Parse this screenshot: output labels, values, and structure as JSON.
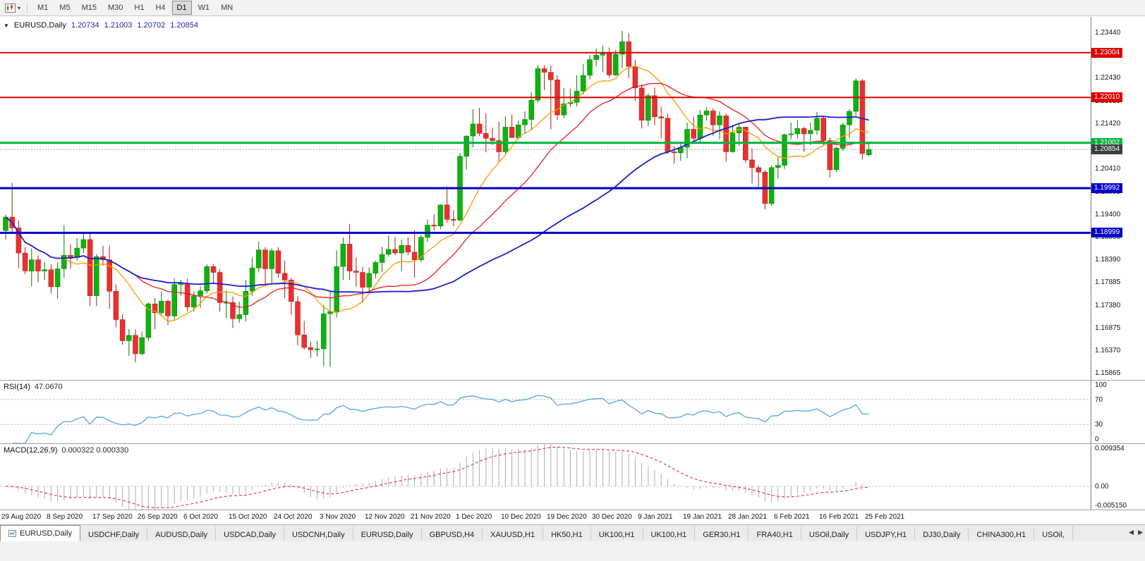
{
  "toolbar": {
    "timeframes": [
      "M1",
      "M5",
      "M15",
      "M30",
      "H1",
      "H4",
      "D1",
      "W1",
      "MN"
    ],
    "active_timeframe": "D1",
    "new_chart_icon": "candlestick-chart",
    "dropdown_caret": "▾"
  },
  "chart": {
    "header": {
      "caret": "▼",
      "symbol": "EURUSD,Daily",
      "open": "1.20734",
      "high": "1.21003",
      "low": "1.20702",
      "close": "1.20854"
    },
    "price_axis": {
      "top": 1.238,
      "bottom": 1.1573,
      "labels": [
        "1.23440",
        "1.22935",
        "1.22430",
        "1.21925",
        "1.21420",
        "1.20915",
        "1.20410",
        "1.19905",
        "1.19400",
        "1.18895",
        "1.18390",
        "1.17885",
        "1.17380",
        "1.16875",
        "1.16370",
        "1.15865"
      ]
    },
    "hlines": [
      {
        "value": 1.23004,
        "label": "1.23004",
        "color": "#dd0000",
        "width": 2
      },
      {
        "value": 1.2201,
        "label": "1.22010",
        "color": "#dd0000",
        "width": 2
      },
      {
        "value": 1.21002,
        "label": "1.21002",
        "color": "#00b43c",
        "width": 3
      },
      {
        "value": 1.19992,
        "label": "1.19992",
        "color": "#0000cc",
        "width": 3
      },
      {
        "value": 1.18999,
        "label": "1.18999",
        "color": "#0000cc",
        "width": 3
      }
    ],
    "bid": {
      "value": 1.20854,
      "label": "1.20854",
      "line_color": "#9c9c9c",
      "badge_color": "#3d3d3d"
    },
    "time_axis": [
      "29 Aug 2020",
      "8 Sep 2020",
      "17 Sep 2020",
      "26 Sep 2020",
      "6 Oct 2020",
      "15 Oct 2020",
      "24 Oct 2020",
      "3 Nov 2020",
      "12 Nov 2020",
      "21 Nov 2020",
      "1 Dec 2020",
      "10 Dec 2020",
      "19 Dec 2020",
      "30 Dec 2020",
      "9 Jan 2021",
      "19 Jan 2021",
      "28 Jan 2021",
      "6 Feb 2021",
      "16 Feb 2021",
      "25 Feb 2021"
    ],
    "colors": {
      "up": "#0db30d",
      "up_dark": "#067a06",
      "down": "#ea2f2f",
      "down_dark": "#a51f14"
    },
    "ma": [
      {
        "period": 10,
        "color": "#ff9900",
        "width": 1.3
      },
      {
        "period": 21,
        "color": "#e82020",
        "width": 1.3
      },
      {
        "period": 50,
        "color": "#1e1ecb",
        "width": 1.8
      }
    ],
    "candles": [
      [
        1.1905,
        1.194,
        1.1885,
        1.1935
      ],
      [
        1.1935,
        1.2011,
        1.19,
        1.1911
      ],
      [
        1.1911,
        1.1927,
        1.1822,
        1.1855
      ],
      [
        1.1855,
        1.1868,
        1.1808,
        1.1815
      ],
      [
        1.1815,
        1.1865,
        1.1781,
        1.184
      ],
      [
        1.184,
        1.185,
        1.179,
        1.1815
      ],
      [
        1.1815,
        1.1835,
        1.1795,
        1.1818
      ],
      [
        1.1818,
        1.183,
        1.1765,
        1.178
      ],
      [
        1.178,
        1.1834,
        1.1753,
        1.182
      ],
      [
        1.182,
        1.1917,
        1.18,
        1.185
      ],
      [
        1.185,
        1.1874,
        1.182,
        1.1845
      ],
      [
        1.1845,
        1.1888,
        1.1838,
        1.1866
      ],
      [
        1.1866,
        1.1901,
        1.1855,
        1.1885
      ],
      [
        1.1885,
        1.1899,
        1.1737,
        1.176
      ],
      [
        1.176,
        1.1852,
        1.1737,
        1.1847
      ],
      [
        1.1847,
        1.1871,
        1.1827,
        1.184
      ],
      [
        1.184,
        1.1872,
        1.1731,
        1.177
      ],
      [
        1.177,
        1.1785,
        1.169,
        1.1707
      ],
      [
        1.1707,
        1.1719,
        1.1651,
        1.166
      ],
      [
        1.166,
        1.1686,
        1.1626,
        1.1672
      ],
      [
        1.1672,
        1.1685,
        1.1612,
        1.1631
      ],
      [
        1.1631,
        1.168,
        1.1628,
        1.1667
      ],
      [
        1.1667,
        1.1745,
        1.166,
        1.1742
      ],
      [
        1.1742,
        1.1755,
        1.1685,
        1.1722
      ],
      [
        1.1722,
        1.1769,
        1.1717,
        1.1748
      ],
      [
        1.1748,
        1.1751,
        1.1695,
        1.1715
      ],
      [
        1.1715,
        1.1798,
        1.1705,
        1.1785
      ],
      [
        1.1785,
        1.1795,
        1.176,
        1.1788
      ],
      [
        1.1788,
        1.1798,
        1.1725,
        1.1735
      ],
      [
        1.1735,
        1.177,
        1.1725,
        1.176
      ],
      [
        1.176,
        1.1781,
        1.1733,
        1.1771
      ],
      [
        1.1771,
        1.183,
        1.1765,
        1.1825
      ],
      [
        1.1825,
        1.1831,
        1.1786,
        1.1812
      ],
      [
        1.1812,
        1.1819,
        1.1725,
        1.1745
      ],
      [
        1.1745,
        1.1772,
        1.171,
        1.1745
      ],
      [
        1.1745,
        1.1758,
        1.1688,
        1.1709
      ],
      [
        1.1709,
        1.1747,
        1.17,
        1.1718
      ],
      [
        1.1718,
        1.1795,
        1.1703,
        1.177
      ],
      [
        1.177,
        1.1845,
        1.176,
        1.1822
      ],
      [
        1.1822,
        1.188,
        1.1812,
        1.1862
      ],
      [
        1.1862,
        1.1868,
        1.1785,
        1.182
      ],
      [
        1.182,
        1.1865,
        1.1786,
        1.186
      ],
      [
        1.186,
        1.1868,
        1.18,
        1.181
      ],
      [
        1.181,
        1.1838,
        1.1755,
        1.1795
      ],
      [
        1.1795,
        1.18,
        1.1718,
        1.1747
      ],
      [
        1.1747,
        1.1759,
        1.165,
        1.1673
      ],
      [
        1.1673,
        1.1704,
        1.164,
        1.1645
      ],
      [
        1.1645,
        1.1658,
        1.1622,
        1.164
      ],
      [
        1.164,
        1.166,
        1.1625,
        1.1642
      ],
      [
        1.1642,
        1.174,
        1.1603,
        1.172
      ],
      [
        1.172,
        1.177,
        1.1602,
        1.1725
      ],
      [
        1.1725,
        1.1861,
        1.1712,
        1.1825
      ],
      [
        1.1825,
        1.189,
        1.1795,
        1.1875
      ],
      [
        1.1875,
        1.192,
        1.1795,
        1.1815
      ],
      [
        1.1815,
        1.1845,
        1.178,
        1.1812
      ],
      [
        1.1812,
        1.1824,
        1.1745,
        1.1779
      ],
      [
        1.1779,
        1.1823,
        1.177,
        1.181
      ],
      [
        1.181,
        1.1838,
        1.1799,
        1.1834
      ],
      [
        1.1834,
        1.1869,
        1.1814,
        1.1852
      ],
      [
        1.1852,
        1.1894,
        1.1847,
        1.1863
      ],
      [
        1.1863,
        1.1891,
        1.185,
        1.1855
      ],
      [
        1.1855,
        1.1885,
        1.1815,
        1.1872
      ],
      [
        1.1872,
        1.189,
        1.185,
        1.1857
      ],
      [
        1.1857,
        1.1906,
        1.18,
        1.184
      ],
      [
        1.184,
        1.1895,
        1.1835,
        1.189
      ],
      [
        1.189,
        1.193,
        1.188,
        1.1917
      ],
      [
        1.1917,
        1.1941,
        1.1905,
        1.1915
      ],
      [
        1.1915,
        1.1963,
        1.1908,
        1.1962
      ],
      [
        1.1962,
        1.2003,
        1.1923,
        1.193
      ],
      [
        1.193,
        1.195,
        1.1915,
        1.1928
      ],
      [
        1.1928,
        1.2077,
        1.1925,
        1.207
      ],
      [
        1.207,
        1.2117,
        1.204,
        1.2115
      ],
      [
        1.2115,
        1.2175,
        1.209,
        1.2142
      ],
      [
        1.2142,
        1.2178,
        1.2115,
        1.2121
      ],
      [
        1.2121,
        1.2166,
        1.2079,
        1.211
      ],
      [
        1.211,
        1.2134,
        1.2095,
        1.2105
      ],
      [
        1.2105,
        1.2147,
        1.2058,
        1.208
      ],
      [
        1.208,
        1.2159,
        1.2076,
        1.2135
      ],
      [
        1.2135,
        1.2163,
        1.211,
        1.2112
      ],
      [
        1.2112,
        1.215,
        1.2108,
        1.214
      ],
      [
        1.214,
        1.217,
        1.212,
        1.2152
      ],
      [
        1.2152,
        1.2212,
        1.213,
        1.2195
      ],
      [
        1.2195,
        1.2273,
        1.219,
        1.2265
      ],
      [
        1.2265,
        1.2273,
        1.2217,
        1.2257
      ],
      [
        1.2257,
        1.2272,
        1.213,
        1.224
      ],
      [
        1.224,
        1.225,
        1.2151,
        1.2162
      ],
      [
        1.2162,
        1.2222,
        1.2155,
        1.2187
      ],
      [
        1.2187,
        1.2221,
        1.218,
        1.219
      ],
      [
        1.219,
        1.225,
        1.2181,
        1.2215
      ],
      [
        1.2215,
        1.2275,
        1.2208,
        1.225
      ],
      [
        1.225,
        1.2295,
        1.224,
        1.2285
      ],
      [
        1.2285,
        1.231,
        1.227,
        1.2295
      ],
      [
        1.2295,
        1.2316,
        1.2258,
        1.23
      ],
      [
        1.23,
        1.2312,
        1.2245,
        1.2251
      ],
      [
        1.2251,
        1.2307,
        1.2248,
        1.2297
      ],
      [
        1.2297,
        1.2349,
        1.2266,
        1.2325
      ],
      [
        1.2325,
        1.2344,
        1.2244,
        1.227
      ],
      [
        1.227,
        1.2285,
        1.2193,
        1.2222
      ],
      [
        1.2222,
        1.223,
        1.2132,
        1.215
      ],
      [
        1.215,
        1.221,
        1.2137,
        1.2205
      ],
      [
        1.2205,
        1.2223,
        1.214,
        1.2158
      ],
      [
        1.2158,
        1.218,
        1.211,
        1.2155
      ],
      [
        1.2155,
        1.2165,
        1.2075,
        1.208
      ],
      [
        1.208,
        1.2092,
        1.2054,
        1.2078
      ],
      [
        1.2078,
        1.21,
        1.206,
        1.209
      ],
      [
        1.209,
        1.2145,
        1.2066,
        1.213
      ],
      [
        1.213,
        1.2158,
        1.2104,
        1.211
      ],
      [
        1.211,
        1.2173,
        1.2102,
        1.2162
      ],
      [
        1.2162,
        1.218,
        1.215,
        1.2171
      ],
      [
        1.2171,
        1.2177,
        1.2116,
        1.214
      ],
      [
        1.214,
        1.217,
        1.2108,
        1.216
      ],
      [
        1.216,
        1.2165,
        1.2058,
        1.208
      ],
      [
        1.208,
        1.214,
        1.2078,
        1.2122
      ],
      [
        1.2122,
        1.2142,
        1.2093,
        1.2135
      ],
      [
        1.2135,
        1.2136,
        1.2056,
        1.2062
      ],
      [
        1.2062,
        1.2087,
        1.201,
        1.2045
      ],
      [
        1.2045,
        1.205,
        1.2002,
        1.2035
      ],
      [
        1.2035,
        1.204,
        1.1952,
        1.1965
      ],
      [
        1.1965,
        1.205,
        1.196,
        1.2045
      ],
      [
        1.2045,
        1.207,
        1.202,
        1.205
      ],
      [
        1.205,
        1.212,
        1.2042,
        1.2118
      ],
      [
        1.2118,
        1.2145,
        1.2108,
        1.212
      ],
      [
        1.212,
        1.215,
        1.211,
        1.2132
      ],
      [
        1.2132,
        1.2136,
        1.208,
        1.212
      ],
      [
        1.212,
        1.2145,
        1.2095,
        1.2128
      ],
      [
        1.2128,
        1.2169,
        1.2118,
        1.2155
      ],
      [
        1.2155,
        1.216,
        1.2095,
        1.2105
      ],
      [
        1.2105,
        1.2112,
        1.2023,
        1.204
      ],
      [
        1.204,
        1.2092,
        1.2035,
        1.2088
      ],
      [
        1.2088,
        1.2145,
        1.2082,
        1.214
      ],
      [
        1.214,
        1.2175,
        1.211,
        1.217
      ],
      [
        1.217,
        1.2243,
        1.216,
        1.2238
      ],
      [
        1.2238,
        1.2242,
        1.2063,
        1.2076
      ],
      [
        1.20734,
        1.21003,
        1.20702,
        1.20854
      ]
    ]
  },
  "rsi": {
    "name": "RSI(14)",
    "value": "47.0670",
    "period": 14,
    "axis": [
      "100",
      "70",
      "30",
      "0"
    ],
    "levels": [
      70,
      30
    ],
    "color": "#56a5da",
    "level_color": "#c9c9c9"
  },
  "macd": {
    "name": "MACD(12,26,9)",
    "values": "0.000322 0.000330",
    "fast": 12,
    "slow": 26,
    "signal": 9,
    "axis_top": "0.009354",
    "axis_zero": "0.00",
    "axis_bottom": "-0.005150",
    "scale_top": 0.009354,
    "scale_bottom": -0.00515,
    "hist_color": "#adadad",
    "signal_color": "#e02020",
    "zero_color": "#cccccc"
  },
  "tabs": {
    "items": [
      "EURUSD,Daily",
      "USDCHF,Daily",
      "AUDUSD,Daily",
      "USDCAD,Daily",
      "USDCNH,Daily",
      "EURUSD,Daily",
      "GBPUSD,H4",
      "XAUUSD,H1",
      "HK50,H1",
      "UK100,H1",
      "UK100,H1",
      "GER30,H1",
      "FRA40,H1",
      "USOil,Daily",
      "USDJPY,H1",
      "DJ30,Daily",
      "CHINA300,H1",
      "USOil,"
    ],
    "active_index": 0,
    "scroll_left": "◀",
    "scroll_right": "▶"
  }
}
